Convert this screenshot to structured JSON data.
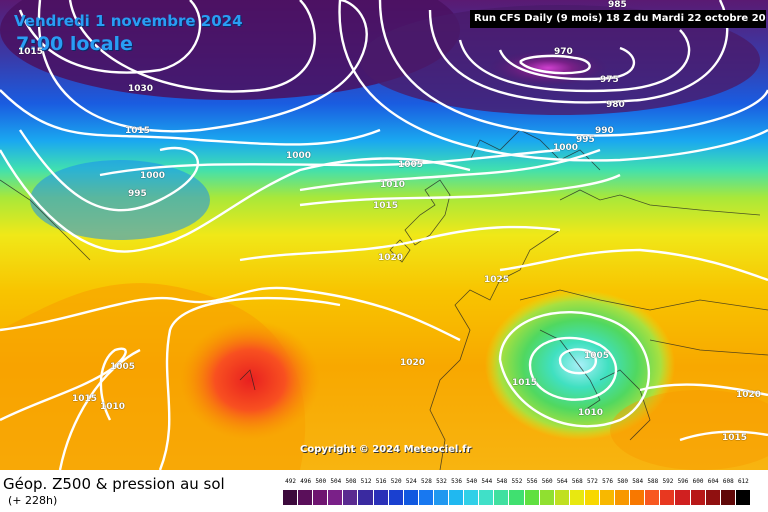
{
  "header": {
    "date": "Vendredi 1 novembre 2024",
    "time": "7:00 locale",
    "run": "Run CFS Daily (9 mois) 18 Z du Mardi 22 octobre 2024"
  },
  "copyright": "Copyright © 2024 Meteociel.fr",
  "footer": {
    "title": "Géop. Z500 & pression au sol",
    "subtitle": "(+ 228h)"
  },
  "scale": {
    "labels": [
      "492",
      "496",
      "500",
      "504",
      "508",
      "512",
      "516",
      "520",
      "524",
      "528",
      "532",
      "536",
      "540",
      "544",
      "548",
      "552",
      "556",
      "560",
      "564",
      "568",
      "572",
      "576",
      "580",
      "584",
      "588",
      "592",
      "596",
      "600",
      "604",
      "608",
      "612"
    ],
    "colors": [
      "#3c0a3c",
      "#5a0f5a",
      "#6e1470",
      "#7a2088",
      "#5a2a90",
      "#3a2aa0",
      "#2a30b8",
      "#1a40d0",
      "#1058e0",
      "#1878f0",
      "#2098f0",
      "#20b8f0",
      "#30d0e8",
      "#40e0c8",
      "#40e0a0",
      "#40e070",
      "#60e040",
      "#90e030",
      "#c0e020",
      "#e8e810",
      "#f8d800",
      "#f8b800",
      "#f89800",
      "#f87800",
      "#f85820",
      "#e83820",
      "#d02020",
      "#b81818",
      "#901010",
      "#600808",
      "#000000"
    ]
  },
  "isobars": [
    "1015",
    "1030",
    "1015",
    "1000",
    "995",
    "1000",
    "1005",
    "1010",
    "1015",
    "1020",
    "1025",
    "970",
    "975",
    "980",
    "985",
    "990",
    "995",
    "1000",
    "1005",
    "1015",
    "1010",
    "1020",
    "1015",
    "1010",
    "1005",
    "1015",
    "1020",
    "1015"
  ]
}
